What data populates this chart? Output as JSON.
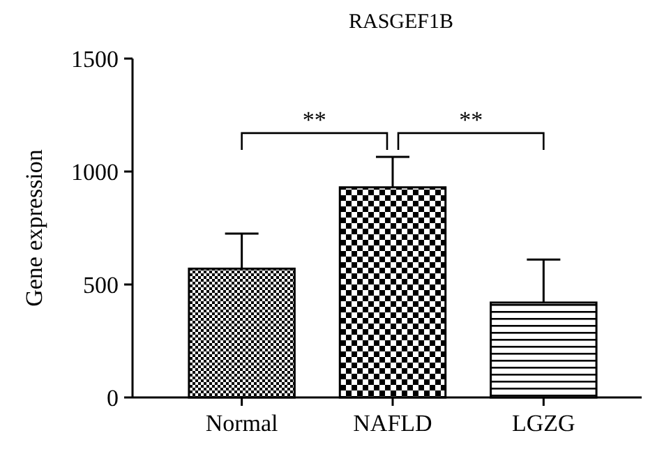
{
  "chart_data": {
    "type": "bar",
    "title": "RASGEF1B",
    "ylabel": "Gene expression",
    "categories": [
      "Normal",
      "NAFLD",
      "LGZG"
    ],
    "values": [
      570,
      930,
      420
    ],
    "errors": [
      [
        570,
        725
      ],
      [
        930,
        1065
      ],
      [
        420,
        610
      ]
    ],
    "colors": [
      "#000000",
      "#000000",
      "#000000"
    ],
    "ylim": [
      0,
      1500
    ],
    "yticks": [
      0,
      500,
      1000,
      1500
    ],
    "annotations": [
      "**",
      "**"
    ]
  }
}
